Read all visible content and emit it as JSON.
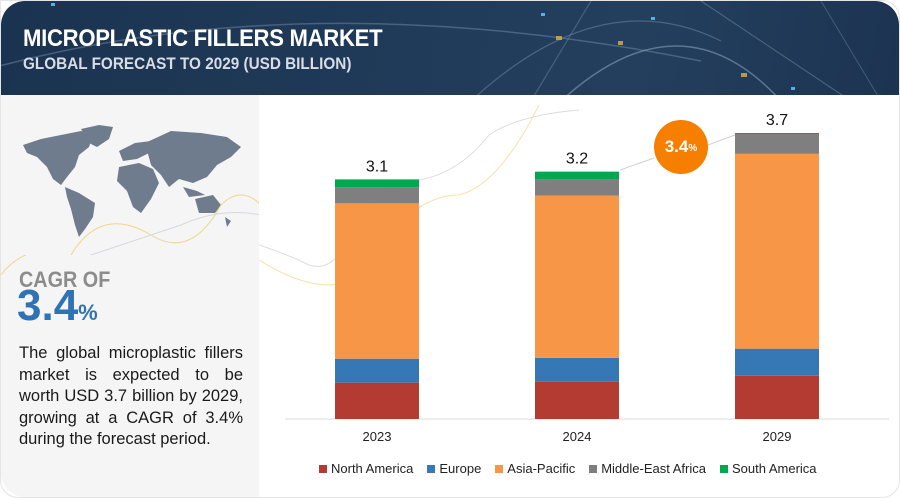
{
  "header": {
    "title": "MICROPLASTIC FILLERS MARKET",
    "subtitle": "GLOBAL FORECAST TO 2029 (USD BILLION)"
  },
  "left_panel": {
    "map_icon": "world-map",
    "cagr_label": "CAGR OF",
    "cagr_value": "3.4",
    "cagr_unit": "%",
    "description": "The global microplastic fillers market is expected to be worth USD 3.7 billion by 2029, growing at a CAGR of 3.4% during the forecast period."
  },
  "cagr_bubble": {
    "value": "3.4",
    "unit": "%",
    "color": "#f77f00"
  },
  "chart_data": {
    "type": "bar",
    "stacked": true,
    "title": "MICROPLASTIC FILLERS MARKET",
    "subtitle": "GLOBAL FORECAST TO 2029 (USD BILLION)",
    "xlabel": "",
    "ylabel": "",
    "categories": [
      "2023",
      "2024",
      "2029"
    ],
    "totals": [
      3.1,
      3.2,
      3.7
    ],
    "total_labels": [
      "3.1",
      "3.2",
      "3.7"
    ],
    "ylim": [
      0,
      3.7
    ],
    "grid": false,
    "legend_position": "bottom",
    "series": [
      {
        "name": "North America",
        "color": "#b33b32",
        "values": [
          0.47,
          0.48,
          0.56
        ]
      },
      {
        "name": "Europe",
        "color": "#3677b6",
        "values": [
          0.31,
          0.31,
          0.35
        ]
      },
      {
        "name": "Asia-Pacific",
        "color": "#f79646",
        "values": [
          2.01,
          2.1,
          2.52
        ]
      },
      {
        "name": "Middle-East Africa",
        "color": "#7f7f7f",
        "values": [
          0.21,
          0.21,
          0.26
        ]
      },
      {
        "name": "South America",
        "color": "#00a850",
        "values": [
          0.1,
          0.1,
          0.01
        ]
      }
    ]
  }
}
